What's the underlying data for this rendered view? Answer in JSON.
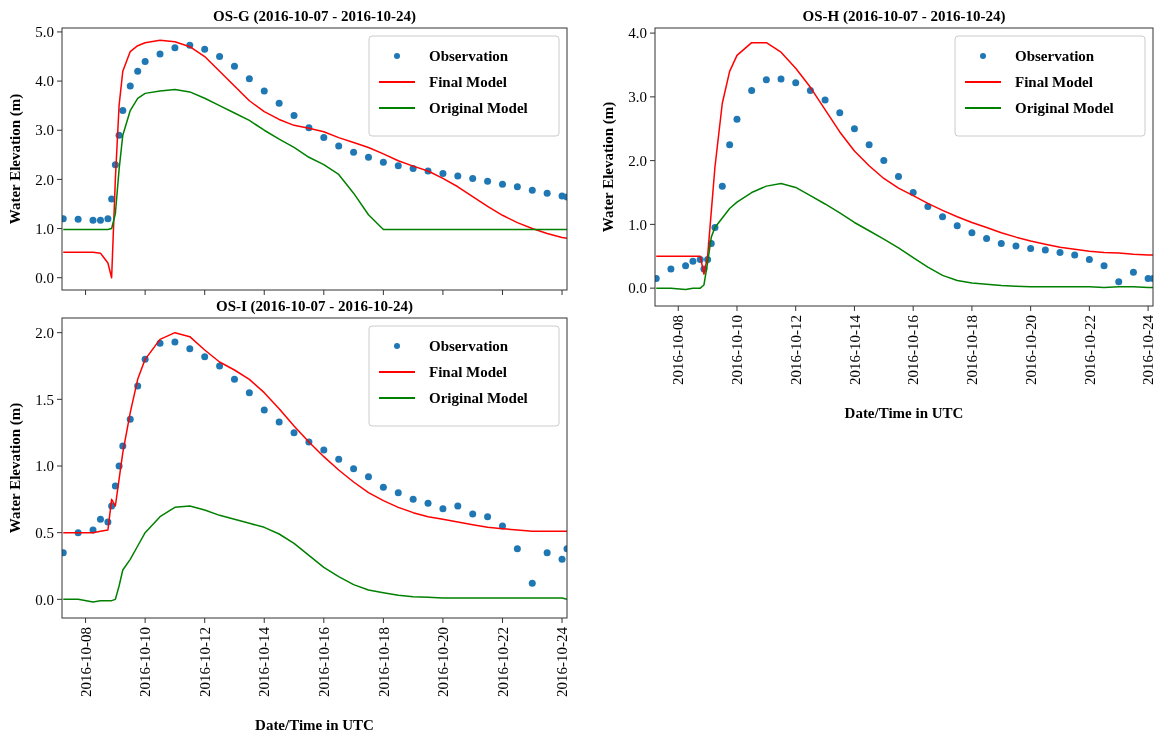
{
  "chart_data": [
    {
      "type": "line",
      "title": "OS-G (2016-10-07 - 2016-10-24)",
      "ylabel": "Water Elevation (m)",
      "xlim": [
        "2016-10-07T05:00",
        "2016-10-24T04:00"
      ],
      "xticks": [
        "2016-10-08",
        "2016-10-10",
        "2016-10-12",
        "2016-10-14",
        "2016-10-16",
        "2016-10-18",
        "2016-10-20",
        "2016-10-22",
        "2016-10-24"
      ],
      "ylim": [
        -0.25,
        5.08
      ],
      "yticks": [
        {
          "value": 0,
          "label": "0.0"
        },
        {
          "value": 1,
          "label": "1.0"
        },
        {
          "value": 2,
          "label": "2.0"
        },
        {
          "value": 3,
          "label": "3.0"
        },
        {
          "value": 4,
          "label": "4.0"
        },
        {
          "value": 5,
          "label": "5.0"
        }
      ],
      "tick_labels": "y",
      "legend": "top right",
      "grid": false,
      "x": [
        "2016-10-07T06:00",
        "2016-10-07T18:00",
        "2016-10-08T06:00",
        "2016-10-08T12:00",
        "2016-10-08T18:00",
        "2016-10-08T21:00",
        "2016-10-09T00:00",
        "2016-10-09T03:00",
        "2016-10-09T06:00",
        "2016-10-09T12:00",
        "2016-10-09T18:00",
        "2016-10-10T00:00",
        "2016-10-10T12:00",
        "2016-10-11T00:00",
        "2016-10-11T12:00",
        "2016-10-12T00:00",
        "2016-10-12T12:00",
        "2016-10-13T00:00",
        "2016-10-13T12:00",
        "2016-10-14T00:00",
        "2016-10-14T12:00",
        "2016-10-15T00:00",
        "2016-10-15T12:00",
        "2016-10-16T00:00",
        "2016-10-16T12:00",
        "2016-10-17T00:00",
        "2016-10-17T12:00",
        "2016-10-18T00:00",
        "2016-10-18T12:00",
        "2016-10-19T00:00",
        "2016-10-19T12:00",
        "2016-10-20T00:00",
        "2016-10-20T12:00",
        "2016-10-21T00:00",
        "2016-10-21T12:00",
        "2016-10-22T00:00",
        "2016-10-22T12:00",
        "2016-10-23T00:00",
        "2016-10-23T12:00",
        "2016-10-24T00:00",
        "2016-10-24T04:00"
      ],
      "series": [
        {
          "name": "Observation",
          "type": "scatter",
          "marker": "circle",
          "color": "#1f77b4",
          "values": [
            1.2,
            1.19,
            1.17,
            1.17,
            1.2,
            1.6,
            2.3,
            2.9,
            3.4,
            3.9,
            4.2,
            4.4,
            4.55,
            4.68,
            4.73,
            4.65,
            4.5,
            4.3,
            4.05,
            3.8,
            3.55,
            3.3,
            3.05,
            2.85,
            2.68,
            2.55,
            2.45,
            2.35,
            2.28,
            2.22,
            2.17,
            2.12,
            2.07,
            2.02,
            1.96,
            1.9,
            1.85,
            1.78,
            1.72,
            1.66,
            1.64
          ]
        },
        {
          "name": "Final Model",
          "type": "line",
          "color": "#ff0000",
          "values": [
            0.52,
            0.52,
            0.52,
            0.5,
            0.3,
            0.0,
            2.0,
            3.5,
            4.2,
            4.6,
            4.72,
            4.78,
            4.83,
            4.8,
            4.7,
            4.5,
            4.2,
            3.9,
            3.6,
            3.38,
            3.22,
            3.1,
            3.04,
            2.97,
            2.85,
            2.75,
            2.65,
            2.52,
            2.38,
            2.27,
            2.17,
            2.02,
            1.85,
            1.65,
            1.45,
            1.27,
            1.12,
            1.0,
            0.9,
            0.82,
            0.8
          ]
        },
        {
          "name": "Original Model",
          "type": "line",
          "color": "#008000",
          "values": [
            0.98,
            0.98,
            0.98,
            0.98,
            0.98,
            1.0,
            1.3,
            2.2,
            2.9,
            3.4,
            3.65,
            3.75,
            3.8,
            3.83,
            3.78,
            3.65,
            3.5,
            3.35,
            3.2,
            3.0,
            2.82,
            2.65,
            2.45,
            2.3,
            2.1,
            1.72,
            1.28,
            0.98,
            0.98,
            0.98,
            0.98,
            0.98,
            0.98,
            0.98,
            0.98,
            0.98,
            0.98,
            0.98,
            0.98,
            0.98,
            0.98
          ]
        }
      ]
    },
    {
      "type": "line",
      "title": "OS-H (2016-10-07 - 2016-10-24)",
      "xlabel": "Date/Time in UTC",
      "ylabel": "Water Elevation (m)",
      "xlim": [
        "2016-10-07T05:00",
        "2016-10-24T04:00"
      ],
      "xticks": [
        "2016-10-08",
        "2016-10-10",
        "2016-10-12",
        "2016-10-14",
        "2016-10-16",
        "2016-10-18",
        "2016-10-20",
        "2016-10-22",
        "2016-10-24"
      ],
      "ylim": [
        -0.28,
        4.08
      ],
      "yticks": [
        {
          "value": 0,
          "label": "0.0"
        },
        {
          "value": 1,
          "label": "1.0"
        },
        {
          "value": 2,
          "label": "2.0"
        },
        {
          "value": 3,
          "label": "3.0"
        },
        {
          "value": 4,
          "label": "4.0"
        }
      ],
      "legend": "top right",
      "grid": false,
      "x": [
        "2016-10-07T06:00",
        "2016-10-07T18:00",
        "2016-10-08T06:00",
        "2016-10-08T12:00",
        "2016-10-08T18:00",
        "2016-10-08T21:00",
        "2016-10-09T00:00",
        "2016-10-09T03:00",
        "2016-10-09T06:00",
        "2016-10-09T12:00",
        "2016-10-09T18:00",
        "2016-10-10T00:00",
        "2016-10-10T12:00",
        "2016-10-11T00:00",
        "2016-10-11T12:00",
        "2016-10-12T00:00",
        "2016-10-12T12:00",
        "2016-10-13T00:00",
        "2016-10-13T12:00",
        "2016-10-14T00:00",
        "2016-10-14T12:00",
        "2016-10-15T00:00",
        "2016-10-15T12:00",
        "2016-10-16T00:00",
        "2016-10-16T12:00",
        "2016-10-17T00:00",
        "2016-10-17T12:00",
        "2016-10-18T00:00",
        "2016-10-18T12:00",
        "2016-10-19T00:00",
        "2016-10-19T12:00",
        "2016-10-20T00:00",
        "2016-10-20T12:00",
        "2016-10-21T00:00",
        "2016-10-21T12:00",
        "2016-10-22T00:00",
        "2016-10-22T12:00",
        "2016-10-23T00:00",
        "2016-10-23T12:00",
        "2016-10-24T00:00",
        "2016-10-24T04:00"
      ],
      "series": [
        {
          "name": "Observation",
          "type": "scatter",
          "marker": "circle",
          "color": "#1f77b4",
          "values": [
            0.15,
            0.3,
            0.35,
            0.42,
            0.45,
            0.3,
            0.45,
            0.7,
            0.95,
            1.6,
            2.25,
            2.65,
            3.1,
            3.27,
            3.28,
            3.22,
            3.1,
            2.95,
            2.75,
            2.5,
            2.25,
            2.0,
            1.75,
            1.5,
            1.28,
            1.12,
            0.98,
            0.87,
            0.78,
            0.7,
            0.66,
            0.62,
            0.6,
            0.56,
            0.52,
            0.45,
            0.35,
            0.1,
            0.25,
            0.15,
            0.15
          ]
        },
        {
          "name": "Final Model",
          "type": "line",
          "color": "#ff0000",
          "values": [
            0.5,
            0.5,
            0.5,
            0.5,
            0.5,
            0.22,
            0.5,
            1.2,
            1.9,
            2.9,
            3.4,
            3.65,
            3.85,
            3.85,
            3.7,
            3.45,
            3.15,
            2.8,
            2.45,
            2.15,
            1.92,
            1.72,
            1.57,
            1.45,
            1.33,
            1.22,
            1.12,
            1.03,
            0.95,
            0.87,
            0.8,
            0.74,
            0.69,
            0.64,
            0.61,
            0.58,
            0.56,
            0.55,
            0.53,
            0.52,
            0.52
          ]
        },
        {
          "name": "Original Model",
          "type": "line",
          "color": "#008000",
          "values": [
            0.0,
            0.0,
            -0.02,
            0.0,
            0.0,
            0.05,
            0.4,
            0.8,
            0.95,
            1.1,
            1.25,
            1.35,
            1.5,
            1.6,
            1.64,
            1.58,
            1.45,
            1.32,
            1.18,
            1.03,
            0.9,
            0.77,
            0.63,
            0.48,
            0.33,
            0.2,
            0.12,
            0.08,
            0.06,
            0.04,
            0.03,
            0.02,
            0.02,
            0.02,
            0.02,
            0.02,
            0.01,
            0.02,
            0.02,
            0.01,
            0.01
          ]
        }
      ]
    },
    {
      "type": "line",
      "title": "OS-I (2016-10-07 - 2016-10-24)",
      "xlabel": "Date/Time in UTC",
      "ylabel": "Water Elevation (m)",
      "xlim": [
        "2016-10-07T05:00",
        "2016-10-24T04:00"
      ],
      "xticks": [
        "2016-10-08",
        "2016-10-10",
        "2016-10-12",
        "2016-10-14",
        "2016-10-16",
        "2016-10-18",
        "2016-10-20",
        "2016-10-22",
        "2016-10-24"
      ],
      "ylim": [
        -0.14,
        2.11
      ],
      "yticks": [
        {
          "value": 0,
          "label": "0.0"
        },
        {
          "value": 0.5,
          "label": "0.5"
        },
        {
          "value": 1,
          "label": "1.0"
        },
        {
          "value": 1.5,
          "label": "1.5"
        },
        {
          "value": 2,
          "label": "2.0"
        }
      ],
      "legend": "top right",
      "grid": false,
      "x": [
        "2016-10-07T06:00",
        "2016-10-07T18:00",
        "2016-10-08T06:00",
        "2016-10-08T12:00",
        "2016-10-08T18:00",
        "2016-10-08T21:00",
        "2016-10-09T00:00",
        "2016-10-09T03:00",
        "2016-10-09T06:00",
        "2016-10-09T12:00",
        "2016-10-09T18:00",
        "2016-10-10T00:00",
        "2016-10-10T12:00",
        "2016-10-11T00:00",
        "2016-10-11T12:00",
        "2016-10-12T00:00",
        "2016-10-12T12:00",
        "2016-10-13T00:00",
        "2016-10-13T12:00",
        "2016-10-14T00:00",
        "2016-10-14T12:00",
        "2016-10-15T00:00",
        "2016-10-15T12:00",
        "2016-10-16T00:00",
        "2016-10-16T12:00",
        "2016-10-17T00:00",
        "2016-10-17T12:00",
        "2016-10-18T00:00",
        "2016-10-18T12:00",
        "2016-10-19T00:00",
        "2016-10-19T12:00",
        "2016-10-20T00:00",
        "2016-10-20T12:00",
        "2016-10-21T00:00",
        "2016-10-21T12:00",
        "2016-10-22T00:00",
        "2016-10-22T12:00",
        "2016-10-23T00:00",
        "2016-10-23T12:00",
        "2016-10-24T00:00",
        "2016-10-24T04:00"
      ],
      "series": [
        {
          "name": "Observation",
          "type": "scatter",
          "marker": "circle",
          "color": "#1f77b4",
          "values": [
            0.35,
            0.5,
            0.52,
            0.6,
            0.58,
            0.7,
            0.85,
            1.0,
            1.15,
            1.35,
            1.6,
            1.8,
            1.92,
            1.93,
            1.88,
            1.82,
            1.75,
            1.65,
            1.55,
            1.42,
            1.33,
            1.25,
            1.18,
            1.12,
            1.05,
            0.98,
            0.92,
            0.84,
            0.8,
            0.75,
            0.72,
            0.68,
            0.7,
            0.64,
            0.62,
            0.55,
            0.38,
            0.12,
            0.35,
            0.3,
            0.38
          ]
        },
        {
          "name": "Final Model",
          "type": "line",
          "color": "#ff0000",
          "values": [
            0.5,
            0.5,
            0.5,
            0.51,
            0.52,
            0.75,
            0.7,
            0.9,
            1.1,
            1.4,
            1.65,
            1.8,
            1.95,
            2.0,
            1.97,
            1.87,
            1.78,
            1.72,
            1.65,
            1.55,
            1.43,
            1.3,
            1.18,
            1.07,
            0.97,
            0.88,
            0.8,
            0.74,
            0.69,
            0.65,
            0.62,
            0.6,
            0.58,
            0.56,
            0.54,
            0.53,
            0.52,
            0.51,
            0.51,
            0.51,
            0.51
          ]
        },
        {
          "name": "Original Model",
          "type": "line",
          "color": "#008000",
          "values": [
            0.0,
            0.0,
            -0.02,
            -0.01,
            -0.01,
            -0.01,
            0.0,
            0.1,
            0.22,
            0.3,
            0.4,
            0.5,
            0.62,
            0.69,
            0.7,
            0.67,
            0.63,
            0.6,
            0.57,
            0.54,
            0.49,
            0.42,
            0.33,
            0.24,
            0.17,
            0.11,
            0.07,
            0.05,
            0.03,
            0.02,
            0.015,
            0.01,
            0.01,
            0.01,
            0.01,
            0.01,
            0.01,
            0.01,
            0.01,
            0.01,
            0.0
          ]
        }
      ]
    }
  ]
}
